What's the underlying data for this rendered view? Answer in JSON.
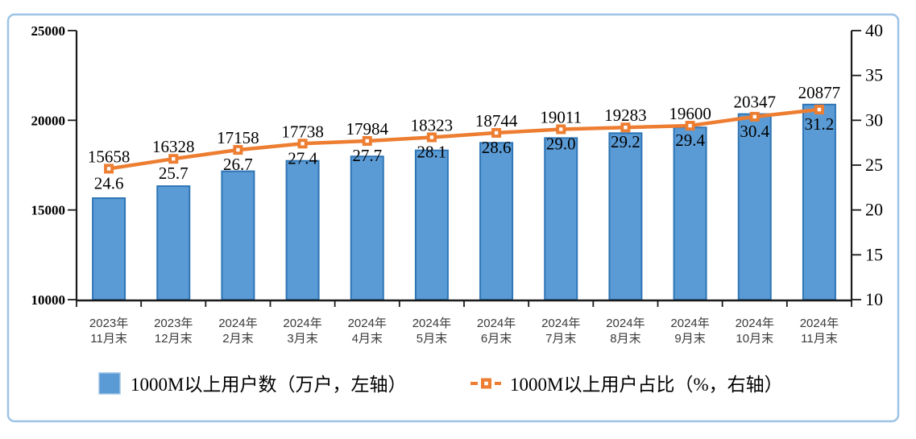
{
  "colors": {
    "frame": "#9DC3E6",
    "bar_fill": "#5B9BD5",
    "bar_stroke": "#2E75B6",
    "line": "#ED7D31",
    "axis": "#1a1a1a",
    "x_label": "#3b3b3b",
    "background": "#ffffff"
  },
  "chart_data": {
    "type": "combo-bar-line",
    "grid": "off",
    "legend_position": "bottom",
    "categories": [
      [
        "2023年",
        "11月末"
      ],
      [
        "2023年",
        "12月末"
      ],
      [
        "2024年",
        "2月末"
      ],
      [
        "2024年",
        "3月末"
      ],
      [
        "2024年",
        "4月末"
      ],
      [
        "2024年",
        "5月末"
      ],
      [
        "2024年",
        "6月末"
      ],
      [
        "2024年",
        "7月末"
      ],
      [
        "2024年",
        "8月末"
      ],
      [
        "2024年",
        "9月末"
      ],
      [
        "2024年",
        "10月末"
      ],
      [
        "2024年",
        "11月末"
      ]
    ],
    "series": [
      {
        "name": "1000M以上用户数（万户，左轴）",
        "type": "bar",
        "axis": "left",
        "values": [
          15658,
          16328,
          17158,
          17738,
          17984,
          18323,
          18744,
          19011,
          19283,
          19600,
          20347,
          20877
        ]
      },
      {
        "name": "1000M以上用户占比（%，右轴）",
        "type": "line",
        "axis": "right",
        "values": [
          24.6,
          25.7,
          26.7,
          27.4,
          27.7,
          28.1,
          28.6,
          29.0,
          29.2,
          29.4,
          30.4,
          31.2
        ]
      }
    ],
    "left_axis": {
      "min": 10000,
      "max": 25000,
      "tick_step": 5000,
      "tick_labels": [
        "10000",
        "15000",
        "20000",
        "25000"
      ]
    },
    "right_axis": {
      "min": 10,
      "max": 40,
      "tick_step": 5,
      "tick_labels": [
        "10",
        "15",
        "20",
        "25",
        "30",
        "35",
        "40"
      ]
    }
  }
}
